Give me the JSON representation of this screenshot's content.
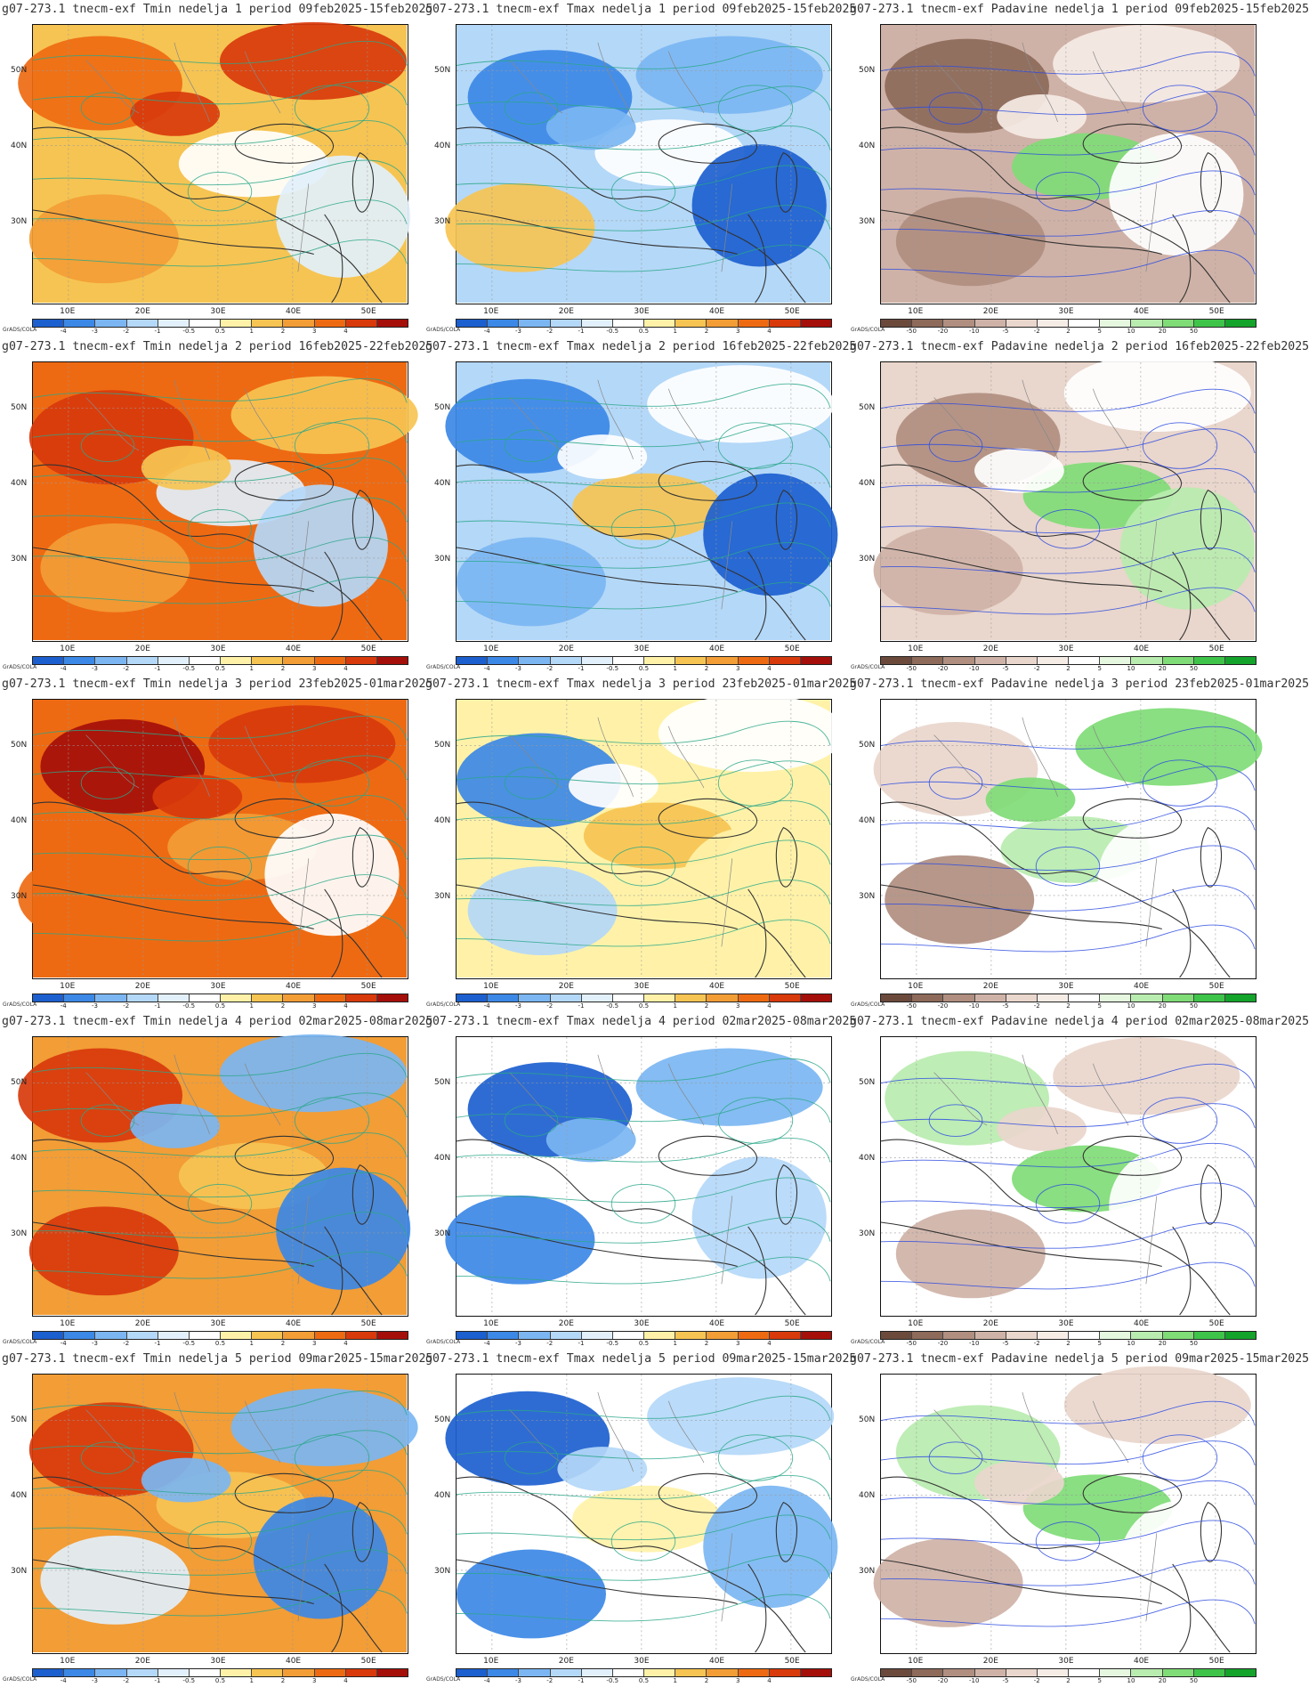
{
  "credit": "GrADS/COLA",
  "lat_labels": [
    "50N",
    "40N",
    "30N"
  ],
  "lon_labels": [
    "10E",
    "20E",
    "30E",
    "40E",
    "50E"
  ],
  "variables": [
    {
      "key": "tmin",
      "title_prefix": "g07-273.1 tnecm-exf Tmin nedelja",
      "colorbar_labels": [
        "-4",
        "-3",
        "-2",
        "-1",
        "-0.5",
        "0.5",
        "1",
        "2",
        "3",
        "4"
      ],
      "colorbar_colors": [
        "#1c5fcf",
        "#3c88e6",
        "#7bb6f2",
        "#b4d8f8",
        "#e2f0fb",
        "#ffffff",
        "#fff2a8",
        "#f6c452",
        "#f29d36",
        "#ee6a12",
        "#d83a0c",
        "#a50f0a"
      ]
    },
    {
      "key": "tmax",
      "title_prefix": "g07-273.1 tnecm-exf Tmax nedelja",
      "colorbar_labels": [
        "-4",
        "-3",
        "-2",
        "-1",
        "-0.5",
        "0.5",
        "1",
        "2",
        "3",
        "4"
      ],
      "colorbar_colors": [
        "#1c5fcf",
        "#3c88e6",
        "#7bb6f2",
        "#b4d8f8",
        "#e2f0fb",
        "#ffffff",
        "#fff2a8",
        "#f6c452",
        "#f29d36",
        "#ee6a12",
        "#d83a0c",
        "#a50f0a"
      ]
    },
    {
      "key": "pad",
      "title_prefix": "g07-273.1 tnecm-exf Padavine nedelja",
      "colorbar_labels": [
        "-50",
        "-20",
        "-10",
        "-5",
        "-2",
        "2",
        "5",
        "10",
        "20",
        "50"
      ],
      "colorbar_colors": [
        "#6b4a3c",
        "#8d6a5a",
        "#b08e80",
        "#cfb2a7",
        "#e9d6cc",
        "#f6ece6",
        "#ffffff",
        "#e5f7df",
        "#b9ecaf",
        "#7fdc76",
        "#3fc44a",
        "#14a32b"
      ]
    }
  ],
  "weeks": [
    {
      "num": "1",
      "period": "period 09feb2025-15feb2025",
      "tmin_colors": [
        "#f6c452",
        "#ee6a12",
        "#d83a0c",
        "#ffffff",
        "#f29d36",
        "#e2f0fb"
      ],
      "tmax_colors": [
        "#b4d8f8",
        "#3c88e6",
        "#7bb6f2",
        "#ffffff",
        "#f6c452",
        "#1c5fcf"
      ],
      "pad_colors": [
        "#cfb2a7",
        "#8d6a5a",
        "#f6ece6",
        "#7fdc76",
        "#b08e80",
        "#ffffff"
      ]
    },
    {
      "num": "2",
      "period": "period 16feb2025-22feb2025",
      "tmin_colors": [
        "#ee6a12",
        "#d83a0c",
        "#f6c452",
        "#e2f0fb",
        "#f29d36",
        "#b4d8f8"
      ],
      "tmax_colors": [
        "#b4d8f8",
        "#3c88e6",
        "#ffffff",
        "#f6c452",
        "#7bb6f2",
        "#1c5fcf"
      ],
      "pad_colors": [
        "#e9d6cc",
        "#b08e80",
        "#ffffff",
        "#7fdc76",
        "#cfb2a7",
        "#b9ecaf"
      ]
    },
    {
      "num": "3",
      "period": "period 23feb2025-01mar2025",
      "tmin_colors": [
        "#ee6a12",
        "#a50f0a",
        "#d83a0c",
        "#f29d36",
        "#ee6a12",
        "#ffffff"
      ],
      "tmax_colors": [
        "#fff2a8",
        "#3c88e6",
        "#ffffff",
        "#f6c452",
        "#b4d8f8",
        "#fff2a8"
      ],
      "pad_colors": [
        "#ffffff",
        "#e9d6cc",
        "#7fdc76",
        "#b9ecaf",
        "#b08e80",
        "#ffffff"
      ]
    },
    {
      "num": "4",
      "period": "period 02mar2025-08mar2025",
      "tmin_colors": [
        "#f29d36",
        "#d83a0c",
        "#7bb6f2",
        "#f6c452",
        "#d83a0c",
        "#3c88e6"
      ],
      "tmax_colors": [
        "#ffffff",
        "#1c5fcf",
        "#7bb6f2",
        "#ffffff",
        "#3c88e6",
        "#b4d8f8"
      ],
      "pad_colors": [
        "#ffffff",
        "#b9ecaf",
        "#e9d6cc",
        "#7fdc76",
        "#cfb2a7",
        "#ffffff"
      ]
    },
    {
      "num": "5",
      "period": "period 09mar2025-15mar2025",
      "tmin_colors": [
        "#f29d36",
        "#d83a0c",
        "#7bb6f2",
        "#f6c452",
        "#e2f0fb",
        "#3c88e6"
      ],
      "tmax_colors": [
        "#ffffff",
        "#1c5fcf",
        "#b4d8f8",
        "#fff2a8",
        "#3c88e6",
        "#7bb6f2"
      ],
      "pad_colors": [
        "#ffffff",
        "#b9ecaf",
        "#e9d6cc",
        "#7fdc76",
        "#cfb2a7",
        "#ffffff"
      ]
    }
  ]
}
